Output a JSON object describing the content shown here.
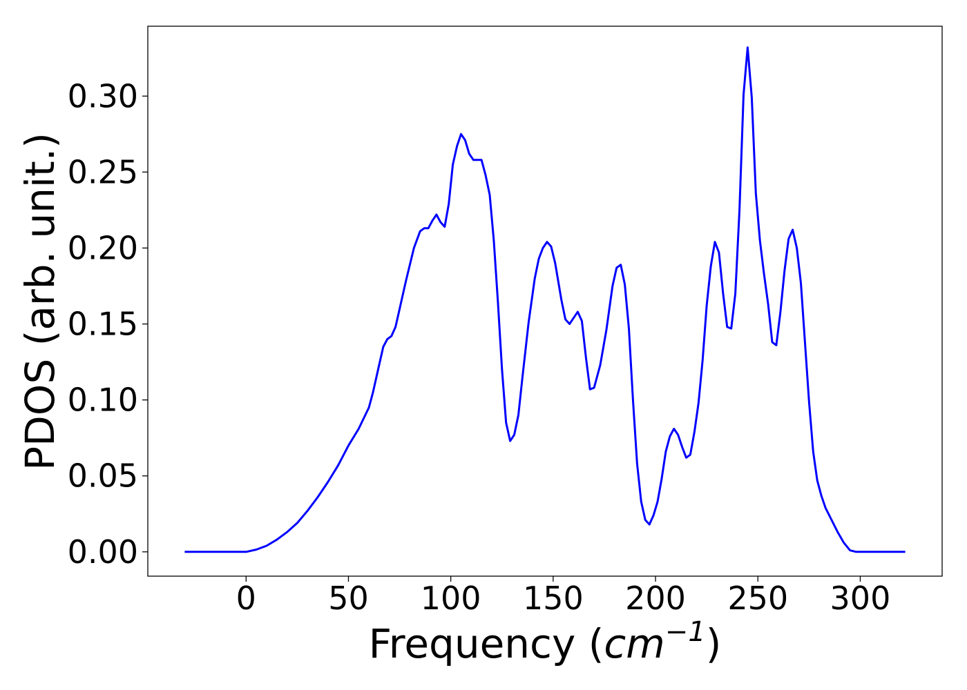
{
  "chart_data": {
    "type": "line",
    "xlabel_main": "Frequency (",
    "xlabel_unit": "cm",
    "xlabel_exp": "−1",
    "xlabel_close": ")",
    "ylabel": "PDOS (arb. unit.)",
    "xlim": [
      -48,
      340
    ],
    "ylim": [
      -0.016,
      0.346
    ],
    "xticks": [
      0,
      50,
      100,
      150,
      200,
      250,
      300
    ],
    "xtick_labels": [
      "0",
      "50",
      "100",
      "150",
      "200",
      "250",
      "300"
    ],
    "yticks": [
      0.0,
      0.05,
      0.1,
      0.15,
      0.2,
      0.25,
      0.3
    ],
    "ytick_labels": [
      "0.00",
      "0.05",
      "0.10",
      "0.15",
      "0.20",
      "0.25",
      "0.30"
    ],
    "grid": false,
    "line_color": "#0000ff",
    "series": [
      {
        "x": [
          -30,
          -20,
          -10,
          0,
          5,
          10,
          15,
          20,
          25,
          30,
          35,
          40,
          45,
          50,
          55,
          60,
          62,
          65,
          67,
          69,
          71,
          73,
          75,
          78,
          82,
          85,
          87,
          89,
          91,
          93,
          95,
          97,
          99,
          101,
          103,
          105,
          107,
          109,
          111,
          113,
          115,
          117,
          119,
          121,
          123,
          125,
          127,
          129,
          131,
          133,
          135,
          138,
          141,
          143,
          145,
          147,
          149,
          151,
          154,
          156,
          158,
          160,
          162,
          164,
          166,
          168,
          170,
          173,
          176,
          179,
          181,
          183,
          185,
          187,
          189,
          191,
          193,
          195,
          197,
          199,
          201,
          203,
          205,
          207,
          209,
          211,
          213,
          215,
          217,
          219,
          221,
          223,
          225,
          227,
          229,
          231,
          233,
          235,
          237,
          239,
          241,
          243,
          245,
          247,
          249,
          251,
          253,
          255,
          257,
          259,
          261,
          263,
          265,
          267,
          269,
          271,
          273,
          275,
          277,
          279,
          281,
          283,
          286,
          289,
          292,
          295,
          298,
          301,
          305,
          310,
          316,
          322
        ],
        "y": [
          0.0,
          0.0,
          0.0,
          0.0,
          0.0015,
          0.004,
          0.008,
          0.013,
          0.019,
          0.027,
          0.036,
          0.046,
          0.057,
          0.07,
          0.081,
          0.095,
          0.105,
          0.123,
          0.135,
          0.14,
          0.142,
          0.148,
          0.16,
          0.178,
          0.2,
          0.211,
          0.213,
          0.213,
          0.218,
          0.222,
          0.217,
          0.214,
          0.229,
          0.255,
          0.267,
          0.275,
          0.271,
          0.262,
          0.258,
          0.258,
          0.258,
          0.248,
          0.235,
          0.205,
          0.165,
          0.12,
          0.085,
          0.073,
          0.077,
          0.09,
          0.115,
          0.151,
          0.18,
          0.193,
          0.2,
          0.204,
          0.201,
          0.19,
          0.166,
          0.153,
          0.15,
          0.154,
          0.158,
          0.152,
          0.128,
          0.107,
          0.108,
          0.123,
          0.146,
          0.175,
          0.187,
          0.189,
          0.176,
          0.147,
          0.1,
          0.058,
          0.033,
          0.021,
          0.018,
          0.024,
          0.033,
          0.048,
          0.066,
          0.076,
          0.081,
          0.077,
          0.069,
          0.062,
          0.064,
          0.079,
          0.098,
          0.126,
          0.162,
          0.188,
          0.204,
          0.197,
          0.17,
          0.148,
          0.147,
          0.17,
          0.225,
          0.301,
          0.332,
          0.299,
          0.236,
          0.205,
          0.183,
          0.163,
          0.138,
          0.136,
          0.158,
          0.185,
          0.206,
          0.212,
          0.2,
          0.177,
          0.138,
          0.099,
          0.066,
          0.047,
          0.037,
          0.029,
          0.021,
          0.013,
          0.006,
          0.001,
          0.0,
          0.0,
          0.0,
          0.0,
          0.0,
          0.0
        ]
      }
    ]
  }
}
